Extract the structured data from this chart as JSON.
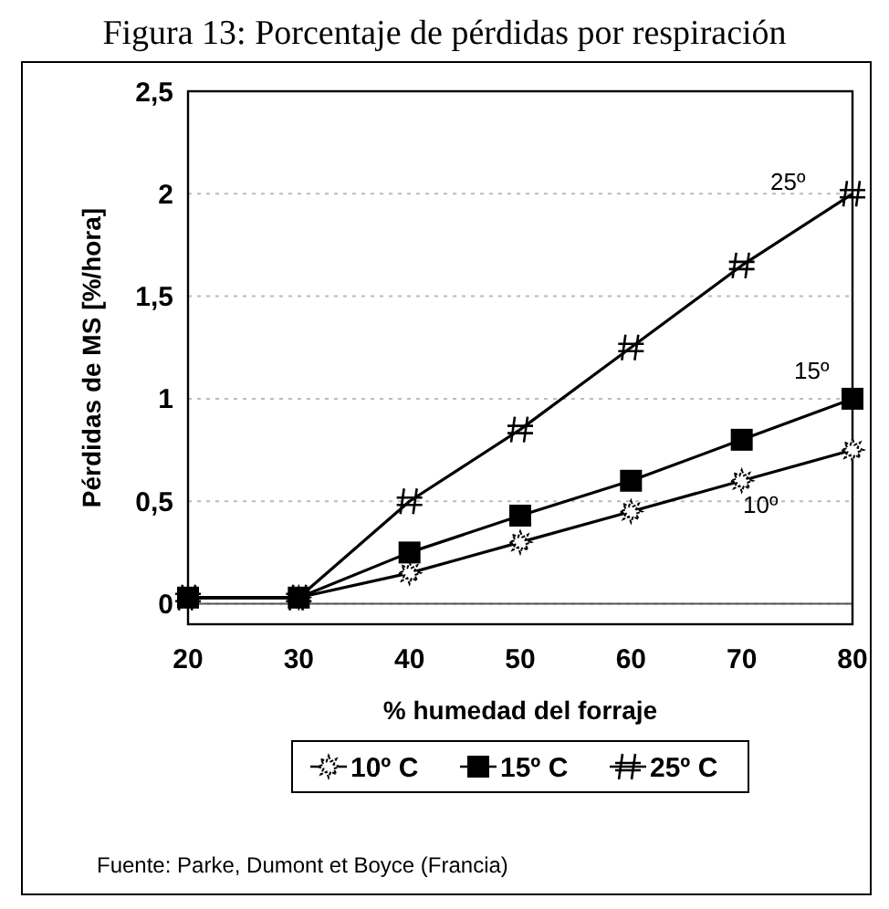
{
  "chart_data": {
    "type": "line",
    "title": "Figura 13: Porcentaje de pérdidas por respiración",
    "xlabel": "% humedad del forraje",
    "ylabel": "Pérdidas de MS [%/hora]",
    "x": [
      20,
      30,
      40,
      50,
      60,
      70,
      80
    ],
    "xlim": [
      20,
      80
    ],
    "xticks": [
      20,
      30,
      40,
      50,
      60,
      70,
      80
    ],
    "ylim": [
      -0.1,
      2.5
    ],
    "yticks": [
      0,
      {
        "value": 0.5,
        "label": "0,5"
      },
      1,
      {
        "value": 1.5,
        "label": "1,5"
      },
      2,
      {
        "value": 2.5,
        "label": "2,5"
      }
    ],
    "grid": "y",
    "legend": "bottom",
    "line_style": "solid",
    "series": [
      {
        "name": "10º C",
        "color": "#000000",
        "marker": "star",
        "values": [
          0.03,
          0.03,
          0.15,
          0.3,
          0.45,
          0.6,
          0.75
        ]
      },
      {
        "name": "15º C",
        "color": "#000000",
        "marker": "square",
        "values": [
          0.03,
          0.03,
          0.25,
          0.43,
          0.6,
          0.8,
          1.0
        ]
      },
      {
        "name": "25º C",
        "color": "#000000",
        "marker": "cross",
        "values": [
          0.03,
          0.03,
          0.5,
          0.85,
          1.25,
          1.65,
          2.0
        ]
      }
    ],
    "annotations": [
      "25º",
      "15º",
      "10º",
      "Fuente: Parke, Dumont et Boyce (Francia)"
    ]
  }
}
